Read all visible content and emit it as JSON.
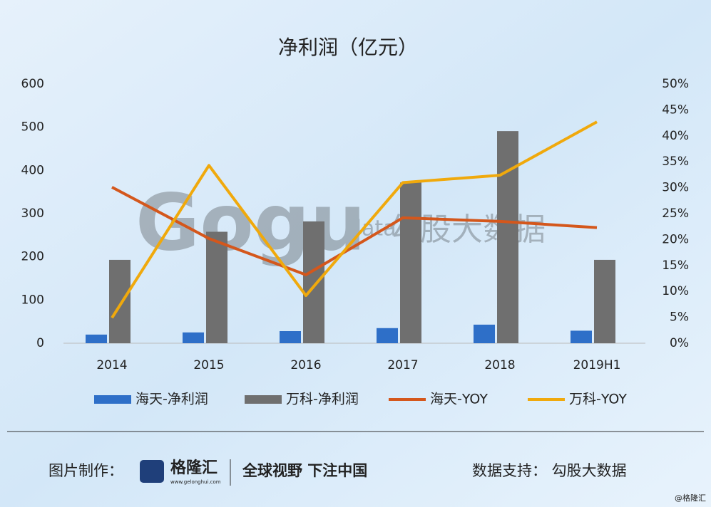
{
  "chart_data": {
    "type": "bar",
    "title": "净利润（亿元）",
    "categories": [
      "2014",
      "2015",
      "2016",
      "2017",
      "2018",
      "2019H1"
    ],
    "series": [
      {
        "name": "海天-净利润",
        "type": "bar",
        "color": "#2e6fc8",
        "values": [
          20,
          25,
          28,
          35,
          43,
          29
        ]
      },
      {
        "name": "万科-净利润",
        "type": "bar",
        "color": "#6f6f6f",
        "values": [
          193,
          258,
          282,
          372,
          491,
          193
        ]
      },
      {
        "name": "海天-YOY",
        "type": "line",
        "axis": "y2",
        "color": "#d4571c",
        "values": [
          30.1,
          20.2,
          13.2,
          24.2,
          23.5,
          22.3
        ]
      },
      {
        "name": "万科-YOY",
        "type": "line",
        "axis": "y2",
        "color": "#f0a90c",
        "values": [
          4.9,
          34.3,
          9.2,
          31.0,
          32.4,
          42.7
        ]
      }
    ],
    "ylim": [
      0,
      600
    ],
    "yticks": [
      0,
      100,
      200,
      300,
      400,
      500,
      600
    ],
    "y2lim": [
      0,
      50
    ],
    "y2ticks": [
      {
        "value": 0,
        "label": "0%"
      },
      {
        "value": 5,
        "label": "5%"
      },
      {
        "value": 10,
        "label": "10%"
      },
      {
        "value": 15,
        "label": "15%"
      },
      {
        "value": 20,
        "label": "20%"
      },
      {
        "value": 25,
        "label": "25%"
      },
      {
        "value": 30,
        "label": "30%"
      },
      {
        "value": 35,
        "label": "35%"
      },
      {
        "value": 40,
        "label": "40%"
      },
      {
        "value": 45,
        "label": "45%"
      },
      {
        "value": 50,
        "label": "50%"
      }
    ],
    "legend": "bottom"
  },
  "watermark": {
    "brand": "Gogu",
    "sub": "data",
    "name": "勾股大数据"
  },
  "footer": {
    "made_by": "图片制作：",
    "logo": "格隆汇",
    "url": "www.gelonghui.com",
    "slogan": "全球视野 下注中国",
    "source": "数据支持：  勾股大数据",
    "credit": "@格隆汇"
  }
}
